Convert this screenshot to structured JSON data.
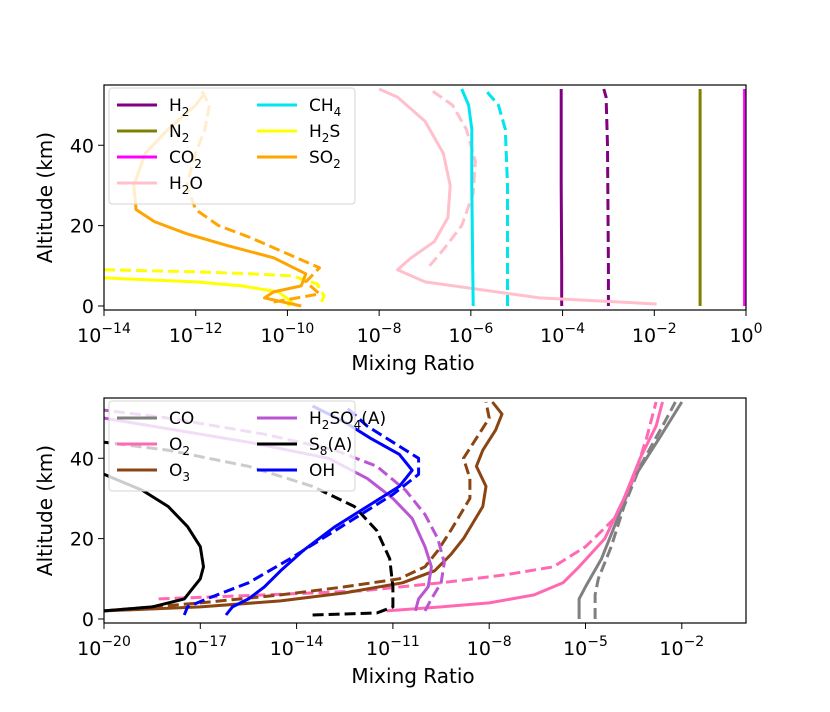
{
  "chart_data": [
    {
      "type": "line",
      "xscale": "log",
      "xlabel": "Mixing Ratio",
      "ylabel": "Altitude (km)",
      "xlim_log10": [
        -14,
        0
      ],
      "ylim": [
        -1,
        55
      ],
      "xticks_log10": [
        -14,
        -12,
        -10,
        -8,
        -6,
        -4,
        -2,
        0
      ],
      "yticks": [
        0,
        20,
        40
      ],
      "legend": {
        "position": "top-left",
        "columns": 2
      },
      "series": [
        {
          "name": "H2",
          "sub": "2",
          "base": "H",
          "color": "#800080",
          "solid": [
            [
              -4.02,
              0
            ],
            [
              -4.02,
              10
            ],
            [
              -4.03,
              30
            ],
            [
              -4.03,
              45
            ],
            [
              -4.03,
              54
            ]
          ],
          "dashed": [
            [
              -3.0,
              0
            ],
            [
              -3.0,
              10
            ],
            [
              -3.02,
              40
            ],
            [
              -3.05,
              52
            ],
            [
              -3.1,
              54
            ]
          ]
        },
        {
          "name": "N2",
          "sub": "2",
          "base": "N",
          "color": "#808000",
          "solid": [
            [
              -1.0,
              0
            ],
            [
              -1.0,
              54
            ]
          ],
          "dashed": []
        },
        {
          "name": "CO2",
          "sub": "2",
          "base": "CO",
          "color": "#ff00ff",
          "solid": [
            [
              -0.03,
              0
            ],
            [
              -0.03,
              54
            ]
          ],
          "dashed": []
        },
        {
          "name": "H2O",
          "sub": "2",
          "base": "H",
          "suffix": "O",
          "color": "#ffc0cb",
          "solid": [
            [
              -1.95,
              0.5
            ],
            [
              -4.5,
              2
            ],
            [
              -7.0,
              6
            ],
            [
              -7.6,
              9
            ],
            [
              -7.3,
              12
            ],
            [
              -6.8,
              16
            ],
            [
              -6.5,
              22
            ],
            [
              -6.45,
              30
            ],
            [
              -6.6,
              38
            ],
            [
              -7.0,
              46
            ],
            [
              -7.6,
              52
            ],
            [
              -8.0,
              54
            ]
          ],
          "dashed": [
            [
              -6.9,
              10
            ],
            [
              -6.6,
              14
            ],
            [
              -6.2,
              20
            ],
            [
              -5.95,
              28
            ],
            [
              -5.9,
              36
            ],
            [
              -6.1,
              44
            ],
            [
              -6.4,
              50
            ],
            [
              -6.9,
              54
            ]
          ]
        },
        {
          "name": "CH4",
          "sub": "4",
          "base": "CH",
          "color": "#00e5ee",
          "solid": [
            [
              -5.95,
              0
            ],
            [
              -5.96,
              10
            ],
            [
              -5.98,
              30
            ],
            [
              -5.98,
              44
            ],
            [
              -6.05,
              50
            ],
            [
              -6.2,
              54
            ]
          ],
          "dashed": [
            [
              -5.2,
              0
            ],
            [
              -5.2,
              10
            ],
            [
              -5.2,
              30
            ],
            [
              -5.25,
              44
            ],
            [
              -5.4,
              50
            ],
            [
              -5.7,
              54
            ]
          ]
        },
        {
          "name": "H2S",
          "sub": "2",
          "base": "H",
          "suffix": "S",
          "color": "#ffff00",
          "solid": [
            [
              -14,
              7
            ],
            [
              -12,
              6
            ],
            [
              -11,
              5
            ],
            [
              -10.2,
              3.5
            ],
            [
              -9.9,
              1
            ],
            [
              -10,
              0
            ]
          ],
          "dashed": [
            [
              -14,
              9
            ],
            [
              -12,
              8.5
            ],
            [
              -10.8,
              8
            ],
            [
              -9.9,
              7.5
            ],
            [
              -9.35,
              5.5
            ],
            [
              -9.2,
              2.5
            ],
            [
              -9.3,
              0
            ]
          ]
        },
        {
          "name": "SO2",
          "sub": "2",
          "base": "SO",
          "color": "#ffa500",
          "solid": [
            [
              -9.7,
              0
            ],
            [
              -10.5,
              2
            ],
            [
              -10.3,
              3.5
            ],
            [
              -9.7,
              5
            ],
            [
              -9.6,
              8
            ],
            [
              -10.3,
              12
            ],
            [
              -11.3,
              15
            ],
            [
              -12.2,
              18
            ],
            [
              -12.9,
              21
            ],
            [
              -13.3,
              24
            ],
            [
              -13.35,
              30
            ],
            [
              -13.1,
              38
            ],
            [
              -12.6,
              44
            ],
            [
              -12.0,
              50
            ],
            [
              -11.8,
              53
            ]
          ],
          "dashed": [
            [
              -10.3,
              1
            ],
            [
              -9.3,
              3
            ],
            [
              -9.6,
              6
            ],
            [
              -9.3,
              9.5
            ],
            [
              -10.0,
              13
            ],
            [
              -10.8,
              17
            ],
            [
              -11.5,
              20
            ],
            [
              -12.0,
              24
            ],
            [
              -12.2,
              30
            ],
            [
              -12.0,
              38
            ],
            [
              -11.8,
              44
            ],
            [
              -11.7,
              50
            ],
            [
              -11.9,
              54
            ]
          ]
        }
      ]
    },
    {
      "type": "line",
      "xscale": "log",
      "xlabel": "Mixing Ratio",
      "ylabel": "Altitude (km)",
      "xlim_log10": [
        -20,
        0
      ],
      "ylim": [
        -1,
        55
      ],
      "xticks_log10": [
        -20,
        -17,
        -14,
        -11,
        -8,
        -5,
        -2
      ],
      "yticks": [
        0,
        20,
        40
      ],
      "legend": {
        "position": "top-left",
        "columns": 2
      },
      "series": [
        {
          "name": "CO",
          "base": "CO",
          "color": "#808080",
          "solid": [
            [
              -5.2,
              0
            ],
            [
              -5.2,
              5
            ],
            [
              -5.0,
              8
            ],
            [
              -4.5,
              15
            ],
            [
              -4.0,
              25
            ],
            [
              -3.5,
              35
            ],
            [
              -2.7,
              45
            ],
            [
              -2.0,
              54
            ]
          ],
          "dashed": [
            [
              -4.7,
              0
            ],
            [
              -4.7,
              6
            ],
            [
              -4.6,
              10
            ],
            [
              -4.2,
              18
            ],
            [
              -3.8,
              28
            ],
            [
              -3.3,
              38
            ],
            [
              -2.6,
              48
            ],
            [
              -2.2,
              54
            ]
          ]
        },
        {
          "name": "O2",
          "sub": "2",
          "base": "O",
          "color": "#ff69b4",
          "solid": [
            [
              -11.2,
              2
            ],
            [
              -9.5,
              3
            ],
            [
              -8.0,
              4
            ],
            [
              -6.6,
              6
            ],
            [
              -5.7,
              9
            ],
            [
              -5.2,
              13
            ],
            [
              -4.4,
              20
            ],
            [
              -3.8,
              30
            ],
            [
              -3.3,
              40
            ],
            [
              -2.8,
              48
            ],
            [
              -2.6,
              54
            ]
          ],
          "dashed": [
            [
              -18.3,
              5
            ],
            [
              -15.0,
              6
            ],
            [
              -12.0,
              7
            ],
            [
              -9.5,
              9
            ],
            [
              -7.5,
              11
            ],
            [
              -6.0,
              13
            ],
            [
              -5.0,
              18
            ],
            [
              -4.1,
              25
            ],
            [
              -3.5,
              35
            ],
            [
              -3.1,
              45
            ],
            [
              -2.8,
              54
            ]
          ]
        },
        {
          "name": "O3",
          "sub": "3",
          "base": "O",
          "color": "#8b4513",
          "solid": [
            [
              -20,
              2
            ],
            [
              -17,
              3
            ],
            [
              -14.5,
              4.5
            ],
            [
              -12.5,
              6.5
            ],
            [
              -10.7,
              9
            ],
            [
              -9.7,
              12
            ],
            [
              -9.2,
              16
            ],
            [
              -8.8,
              20
            ],
            [
              -8.5,
              24
            ],
            [
              -8.2,
              28
            ],
            [
              -8.1,
              33
            ],
            [
              -8.4,
              38
            ],
            [
              -8.2,
              42
            ],
            [
              -7.8,
              47
            ],
            [
              -7.6,
              51
            ],
            [
              -7.9,
              54
            ]
          ],
          "dashed": [
            [
              -20,
              2
            ],
            [
              -17,
              4
            ],
            [
              -14.5,
              6
            ],
            [
              -12.5,
              8
            ],
            [
              -10.8,
              10
            ],
            [
              -10.0,
              13
            ],
            [
              -9.6,
              17
            ],
            [
              -9.2,
              22
            ],
            [
              -8.9,
              26
            ],
            [
              -8.6,
              30
            ],
            [
              -8.6,
              35
            ],
            [
              -8.8,
              40
            ],
            [
              -8.4,
              45
            ],
            [
              -8.0,
              50
            ],
            [
              -8.1,
              54
            ]
          ]
        },
        {
          "name": "H2SO4(A)",
          "sub": "2",
          "base": "H",
          "mid": "SO",
          "sub2": "4",
          "suffix": "(A)",
          "color": "#ba55d3",
          "solid": [
            [
              -10.3,
              2
            ],
            [
              -10.2,
              5
            ],
            [
              -9.9,
              8
            ],
            [
              -9.8,
              13
            ],
            [
              -10.0,
              18
            ],
            [
              -10.4,
              25
            ],
            [
              -11.0,
              30
            ],
            [
              -11.8,
              35
            ],
            [
              -13.0,
              40
            ],
            [
              -15.5,
              44
            ],
            [
              -18.5,
              48
            ],
            [
              -20,
              50
            ]
          ],
          "dashed": [
            [
              -10.0,
              2
            ],
            [
              -9.8,
              5
            ],
            [
              -9.5,
              9
            ],
            [
              -9.4,
              14
            ],
            [
              -9.6,
              20
            ],
            [
              -10.0,
              26
            ],
            [
              -10.6,
              32
            ],
            [
              -11.5,
              38
            ],
            [
              -12.8,
              42
            ],
            [
              -15.0,
              46
            ],
            [
              -18.0,
              50
            ],
            [
              -20,
              52
            ]
          ]
        },
        {
          "name": "S8(A)",
          "sub": "8",
          "base": "S",
          "suffix": "(A)",
          "color": "#000000",
          "solid": [
            [
              -20,
              2
            ],
            [
              -18.5,
              3
            ],
            [
              -17.5,
              5
            ],
            [
              -17.2,
              8
            ],
            [
              -17.0,
              10
            ],
            [
              -16.9,
              13
            ],
            [
              -17.0,
              18
            ],
            [
              -17.4,
              23
            ],
            [
              -18.0,
              28
            ],
            [
              -18.8,
              32
            ],
            [
              -20,
              36
            ]
          ],
          "dashed": [
            [
              -13.5,
              1
            ],
            [
              -11.5,
              1.5
            ],
            [
              -11.0,
              3
            ],
            [
              -11.0,
              8
            ],
            [
              -11.1,
              15
            ],
            [
              -11.5,
              22
            ],
            [
              -12.2,
              28
            ],
            [
              -13.5,
              33
            ],
            [
              -15.5,
              38
            ],
            [
              -18.0,
              42
            ],
            [
              -20,
              44
            ]
          ]
        },
        {
          "name": "OH",
          "base": "OH",
          "color": "#0000ff",
          "solid": [
            [
              -16.2,
              1
            ],
            [
              -16.0,
              3
            ],
            [
              -15.5,
              5
            ],
            [
              -15.0,
              8
            ],
            [
              -14.5,
              12
            ],
            [
              -13.8,
              17
            ],
            [
              -12.8,
              23
            ],
            [
              -11.8,
              28
            ],
            [
              -10.8,
              33
            ],
            [
              -10.4,
              37
            ],
            [
              -10.8,
              41
            ],
            [
              -11.7,
              45
            ],
            [
              -12.5,
              49
            ],
            [
              -13.5,
              53
            ]
          ],
          "dashed": [
            [
              -17.5,
              1
            ],
            [
              -17.4,
              3
            ],
            [
              -16.8,
              5
            ],
            [
              -15.5,
              9
            ],
            [
              -14.2,
              15
            ],
            [
              -13.0,
              21
            ],
            [
              -12.0,
              26
            ],
            [
              -11.0,
              31
            ],
            [
              -10.2,
              36
            ],
            [
              -10.2,
              40
            ],
            [
              -11.0,
              44
            ],
            [
              -11.8,
              48
            ],
            [
              -12.5,
              53
            ]
          ]
        }
      ]
    }
  ]
}
